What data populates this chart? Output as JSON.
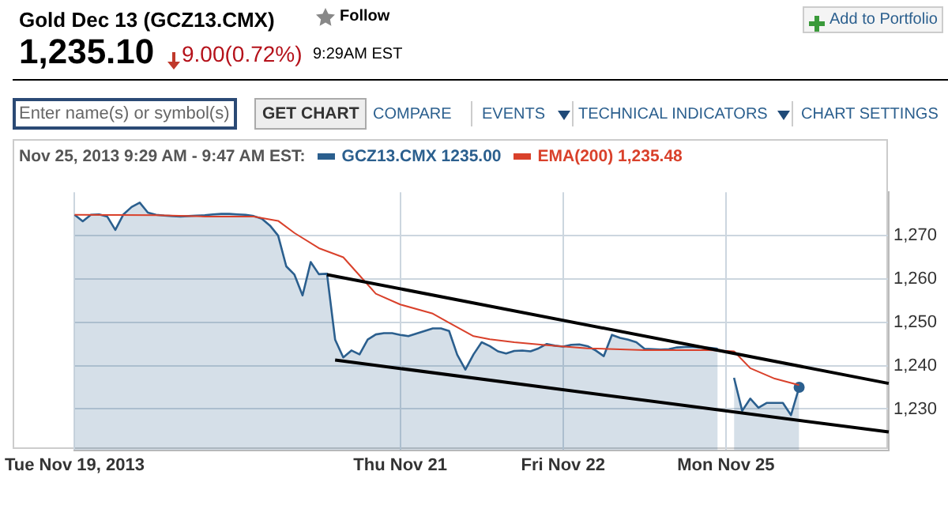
{
  "chart_data": {
    "type": "line",
    "title": "Gold Dec 13 (GCZ13.CMX)",
    "subtitle": "1,235.10",
    "legend_title": "Nov 25, 2013 9:29 AM - 9:47 AM EST:",
    "annotations": [
      "9.00(0.72%)",
      "9:29AM EST",
      "Follow",
      "Add to Portfolio",
      "Enter name(s) or symbol(s)",
      "GET CHART",
      "COMPARE",
      "EVENTS",
      "TECHNICAL INDICATORS",
      "CHART SETTINGS"
    ],
    "categories": [
      "Tue Nov 19, 2013",
      null,
      null,
      null,
      null,
      null,
      null,
      null,
      null,
      null,
      null,
      null,
      null,
      null,
      null,
      null,
      null,
      null,
      null,
      null,
      null,
      null,
      null,
      null,
      null,
      null,
      null,
      null,
      null,
      null,
      null,
      null,
      null,
      null,
      null,
      null,
      null,
      null,
      null,
      null,
      "Thu Nov 21",
      null,
      null,
      null,
      null,
      null,
      null,
      null,
      null,
      null,
      null,
      null,
      null,
      null,
      null,
      null,
      null,
      null,
      null,
      null,
      "Fri Nov 22",
      null,
      null,
      null,
      null,
      null,
      null,
      null,
      null,
      null,
      null,
      null,
      null,
      null,
      null,
      null,
      null,
      null,
      null,
      null,
      "Mon Nov 25",
      null,
      null,
      null,
      null,
      null,
      null,
      null,
      null,
      null,
      null,
      null,
      null,
      null,
      null,
      null,
      null,
      null,
      null,
      null,
      null
    ],
    "ylim": [
      1220.5,
      1280
    ],
    "yticks": [
      {
        "value": 1230,
        "label": "1,230"
      },
      {
        "value": 1240,
        "label": "1,240"
      },
      {
        "value": 1250,
        "label": "1,250"
      },
      {
        "value": 1260,
        "label": "1,260"
      },
      {
        "value": 1270,
        "label": "1,270"
      }
    ],
    "grid": true,
    "legend": "top left",
    "series": [
      {
        "type": "area",
        "name": "GCZ13.CMX 1235.00",
        "color": "#2b5f8e",
        "values": [
          1274.8,
          1273.3,
          1274.8,
          1274.9,
          1274.4,
          1271.3,
          1274.9,
          1276.6,
          1277.6,
          1275.3,
          1274.8,
          1274.6,
          1274.5,
          1274.4,
          1274.5,
          1274.6,
          1274.7,
          1274.9,
          1275.0,
          1275.0,
          1274.9,
          1274.8,
          1274.5,
          1273.9,
          1272.3,
          1270.0,
          1262.9,
          1261.0,
          1256.2,
          1263.9,
          1261.1,
          1261.2,
          1246.0,
          1241.9,
          1243.5,
          1242.6,
          1246.0,
          1247.2,
          1247.5,
          1247.5,
          1247.1,
          1246.8,
          1247.4,
          1248.0,
          1248.6,
          1248.6,
          1248.0,
          1242.5,
          1239.1,
          1242.6,
          1245.4,
          1244.5,
          1243.3,
          1242.8,
          1243.4,
          1243.5,
          1243.3,
          1244.0,
          1245.0,
          1244.6,
          1244.4,
          1244.8,
          1244.9,
          1244.5,
          1243.5,
          1242.2,
          1247.1,
          1246.4,
          1246.0,
          1245.4,
          1243.9,
          1243.8,
          1243.7,
          1243.8,
          1244.2,
          1244.3,
          1244.3,
          1244.2,
          1244.1,
          1243.9,
          null,
          1237.2,
          1229.6,
          1232.4,
          1230.3,
          1231.4,
          1231.4,
          1231.4,
          1228.6,
          1235.0,
          null,
          null,
          null,
          null,
          null,
          null,
          null,
          null,
          null,
          null,
          null
        ]
      },
      {
        "type": "line",
        "name": "EMA(200) 1,235.48",
        "color": "#d9412b",
        "values": [
          1274.8,
          null,
          null,
          null,
          null,
          null,
          null,
          null,
          null,
          null,
          1274.7,
          null,
          null,
          null,
          null,
          null,
          1274.4,
          null,
          null,
          null,
          null,
          null,
          1274.4,
          null,
          null,
          1273.4,
          null,
          1270.6,
          null,
          null,
          1267.1,
          null,
          null,
          1265.0,
          null,
          1260.8,
          null,
          1256.6,
          null,
          null,
          1254.1,
          null,
          null,
          null,
          1252.0,
          null,
          1249.9,
          null,
          null,
          1246.8,
          null,
          1246.1,
          null,
          null,
          1245.4,
          null,
          null,
          null,
          1244.7,
          null,
          null,
          null,
          null,
          1244.0,
          null,
          null,
          null,
          null,
          null,
          null,
          1243.6,
          null,
          null,
          null,
          null,
          null,
          null,
          null,
          1243.6,
          null,
          null,
          1243.3,
          null,
          1239.4,
          null,
          null,
          1237.0,
          null,
          null,
          1235.5,
          null,
          null,
          null,
          null,
          null,
          null,
          null,
          null,
          null,
          null,
          null
        ]
      },
      {
        "type": "line",
        "color": "#000000",
        "values": [
          null,
          null,
          null,
          null,
          null,
          null,
          null,
          null,
          null,
          null,
          null,
          null,
          null,
          null,
          null,
          null,
          null,
          null,
          null,
          null,
          null,
          null,
          null,
          null,
          null,
          null,
          null,
          null,
          null,
          null,
          null,
          1261.0,
          null,
          null,
          null,
          null,
          null,
          null,
          null,
          null,
          null,
          null,
          null,
          null,
          null,
          null,
          null,
          null,
          null,
          null,
          null,
          null,
          null,
          null,
          null,
          null,
          null,
          null,
          null,
          null,
          null,
          null,
          null,
          null,
          null,
          null,
          null,
          null,
          null,
          null,
          null,
          null,
          null,
          null,
          null,
          null,
          null,
          null,
          null,
          null,
          null,
          null,
          null,
          null,
          null,
          null,
          null,
          null,
          null,
          null,
          null,
          null,
          null,
          null,
          null,
          null,
          null,
          null,
          null,
          null,
          1235.9
        ]
      },
      {
        "type": "line",
        "color": "#000000",
        "values": [
          null,
          null,
          null,
          null,
          null,
          null,
          null,
          null,
          null,
          null,
          null,
          null,
          null,
          null,
          null,
          null,
          null,
          null,
          null,
          null,
          null,
          null,
          null,
          null,
          null,
          null,
          null,
          null,
          null,
          null,
          null,
          null,
          1241.3,
          null,
          null,
          null,
          null,
          null,
          null,
          null,
          null,
          null,
          null,
          null,
          null,
          null,
          null,
          null,
          null,
          null,
          null,
          null,
          null,
          null,
          null,
          null,
          null,
          null,
          null,
          null,
          null,
          null,
          null,
          null,
          null,
          null,
          null,
          null,
          null,
          null,
          null,
          null,
          null,
          null,
          null,
          null,
          null,
          null,
          null,
          null,
          null,
          null,
          null,
          null,
          null,
          null,
          null,
          null,
          null,
          null,
          null,
          null,
          null,
          null,
          null,
          null,
          null,
          null,
          null,
          null,
          1224.7
        ]
      }
    ]
  }
}
